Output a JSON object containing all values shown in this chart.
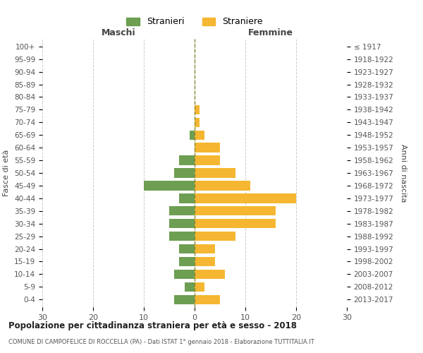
{
  "age_groups": [
    "0-4",
    "5-9",
    "10-14",
    "15-19",
    "20-24",
    "25-29",
    "30-34",
    "35-39",
    "40-44",
    "45-49",
    "50-54",
    "55-59",
    "60-64",
    "65-69",
    "70-74",
    "75-79",
    "80-84",
    "85-89",
    "90-94",
    "95-99",
    "100+"
  ],
  "birth_years": [
    "2013-2017",
    "2008-2012",
    "2003-2007",
    "1998-2002",
    "1993-1997",
    "1988-1992",
    "1983-1987",
    "1978-1982",
    "1973-1977",
    "1968-1972",
    "1963-1967",
    "1958-1962",
    "1953-1957",
    "1948-1952",
    "1943-1947",
    "1938-1942",
    "1933-1937",
    "1928-1932",
    "1923-1927",
    "1918-1922",
    "≤ 1917"
  ],
  "males": [
    4,
    2,
    4,
    3,
    3,
    5,
    5,
    5,
    3,
    10,
    4,
    3,
    0,
    1,
    0,
    0,
    0,
    0,
    0,
    0,
    0
  ],
  "females": [
    5,
    2,
    6,
    4,
    4,
    8,
    16,
    16,
    20,
    11,
    8,
    5,
    5,
    2,
    1,
    1,
    0,
    0,
    0,
    0,
    0
  ],
  "male_color": "#6d9e52",
  "female_color": "#f5b731",
  "male_label": "Stranieri",
  "female_label": "Straniere",
  "title": "Popolazione per cittadinanza straniera per età e sesso - 2018",
  "subtitle": "COMUNE DI CAMPOFELICE DI ROCCELLA (PA) - Dati ISTAT 1° gennaio 2018 - Elaborazione TUTTITALIA.IT",
  "xlabel_left": "Maschi",
  "xlabel_right": "Femmine",
  "ylabel_left": "Fasce di età",
  "ylabel_right": "Anni di nascita",
  "xlim": 30,
  "bg_color": "#ffffff",
  "grid_color": "#cccccc"
}
